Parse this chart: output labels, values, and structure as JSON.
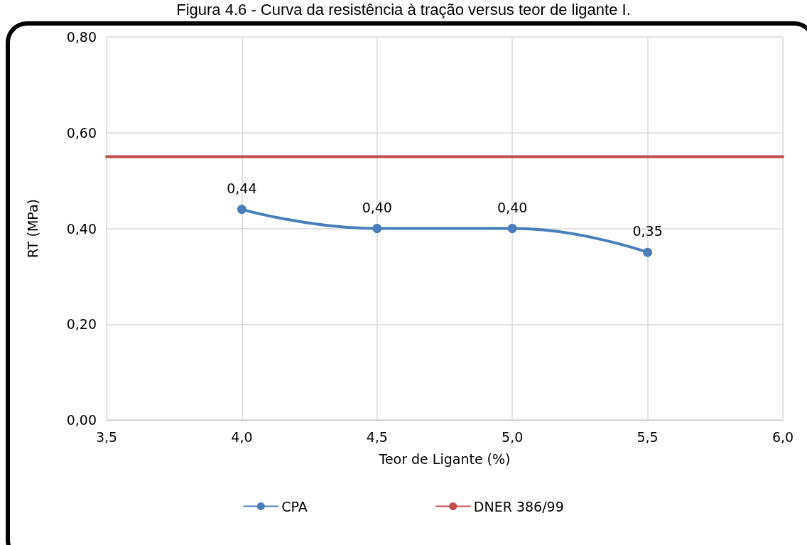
{
  "chart_data": {
    "type": "line",
    "title": "Figura 4.6 - Curva da resistência à tração versus teor de ligante I.",
    "xlabel": "Teor de Ligante (%)",
    "ylabel": "RT (MPa)",
    "x": [
      4.0,
      4.5,
      5.0,
      5.5
    ],
    "series": [
      {
        "name": "CPA",
        "color": "#4a7ebb",
        "values": [
          0.44,
          0.4,
          0.4,
          0.35
        ],
        "marker": "circle",
        "value_labels": [
          "0,44",
          "0,40",
          "0,40",
          "0,35"
        ]
      },
      {
        "name": "DNER 386/99",
        "color": "#c0504d",
        "x": [
          3.5,
          6.0
        ],
        "values": [
          0.55,
          0.55
        ],
        "marker": "none"
      }
    ],
    "xlim": [
      3.5,
      6.0
    ],
    "xticks": [
      {
        "value": 3.5,
        "label": "3,5"
      },
      {
        "value": 4.0,
        "label": "4,0"
      },
      {
        "value": 4.5,
        "label": "4,5"
      },
      {
        "value": 5.0,
        "label": "5,0"
      },
      {
        "value": 5.5,
        "label": "5,5"
      },
      {
        "value": 6.0,
        "label": "6,0"
      }
    ],
    "ylim": [
      0,
      0.8
    ],
    "yticks": [
      {
        "value": 0,
        "label": "0,00"
      },
      {
        "value": 0.2,
        "label": "0,20"
      },
      {
        "value": 0.4,
        "label": "0,40"
      },
      {
        "value": 0.6,
        "label": "0,60"
      },
      {
        "value": 0.8,
        "label": "0,80"
      }
    ],
    "grid": true,
    "legend": "bottom"
  }
}
